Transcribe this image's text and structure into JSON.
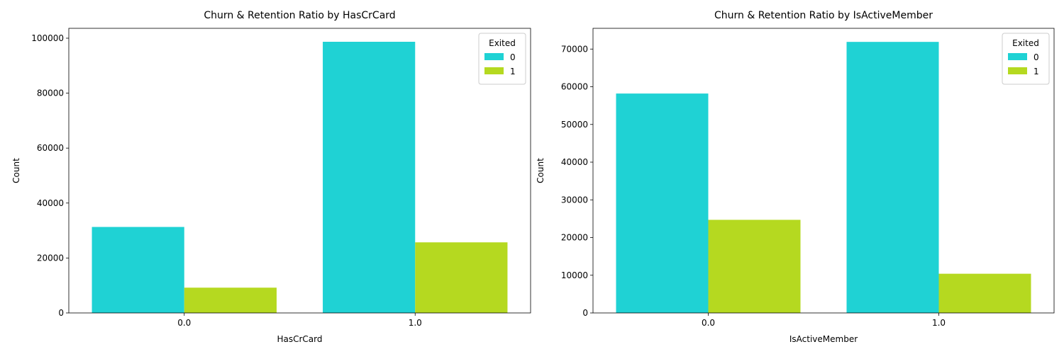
{
  "colors": {
    "series_0": "#1fd2d4",
    "series_1": "#b5d920"
  },
  "chart_data": [
    {
      "type": "bar",
      "title": "Churn & Retention Ratio by HasCrCard",
      "xlabel": "HasCrCard",
      "ylabel": "Count",
      "categories": [
        "0.0",
        "1.0"
      ],
      "series": [
        {
          "name": "0",
          "values": [
            31300,
            98700
          ]
        },
        {
          "name": "1",
          "values": [
            9200,
            25700
          ]
        }
      ],
      "ylim": [
        0,
        103600
      ],
      "yticks": [
        0,
        20000,
        40000,
        60000,
        80000,
        100000
      ],
      "legend": {
        "title": "Exited",
        "position": "top-right"
      },
      "grid": false
    },
    {
      "type": "bar",
      "title": "Churn & Retention Ratio by IsActiveMember",
      "xlabel": "IsActiveMember",
      "ylabel": "Count",
      "categories": [
        "0.0",
        "1.0"
      ],
      "series": [
        {
          "name": "0",
          "values": [
            58200,
            71900
          ]
        },
        {
          "name": "1",
          "values": [
            24700,
            10400
          ]
        }
      ],
      "ylim": [
        0,
        75500
      ],
      "yticks": [
        0,
        10000,
        20000,
        30000,
        40000,
        50000,
        60000,
        70000
      ],
      "legend": {
        "title": "Exited",
        "position": "top-right"
      },
      "grid": false
    }
  ]
}
